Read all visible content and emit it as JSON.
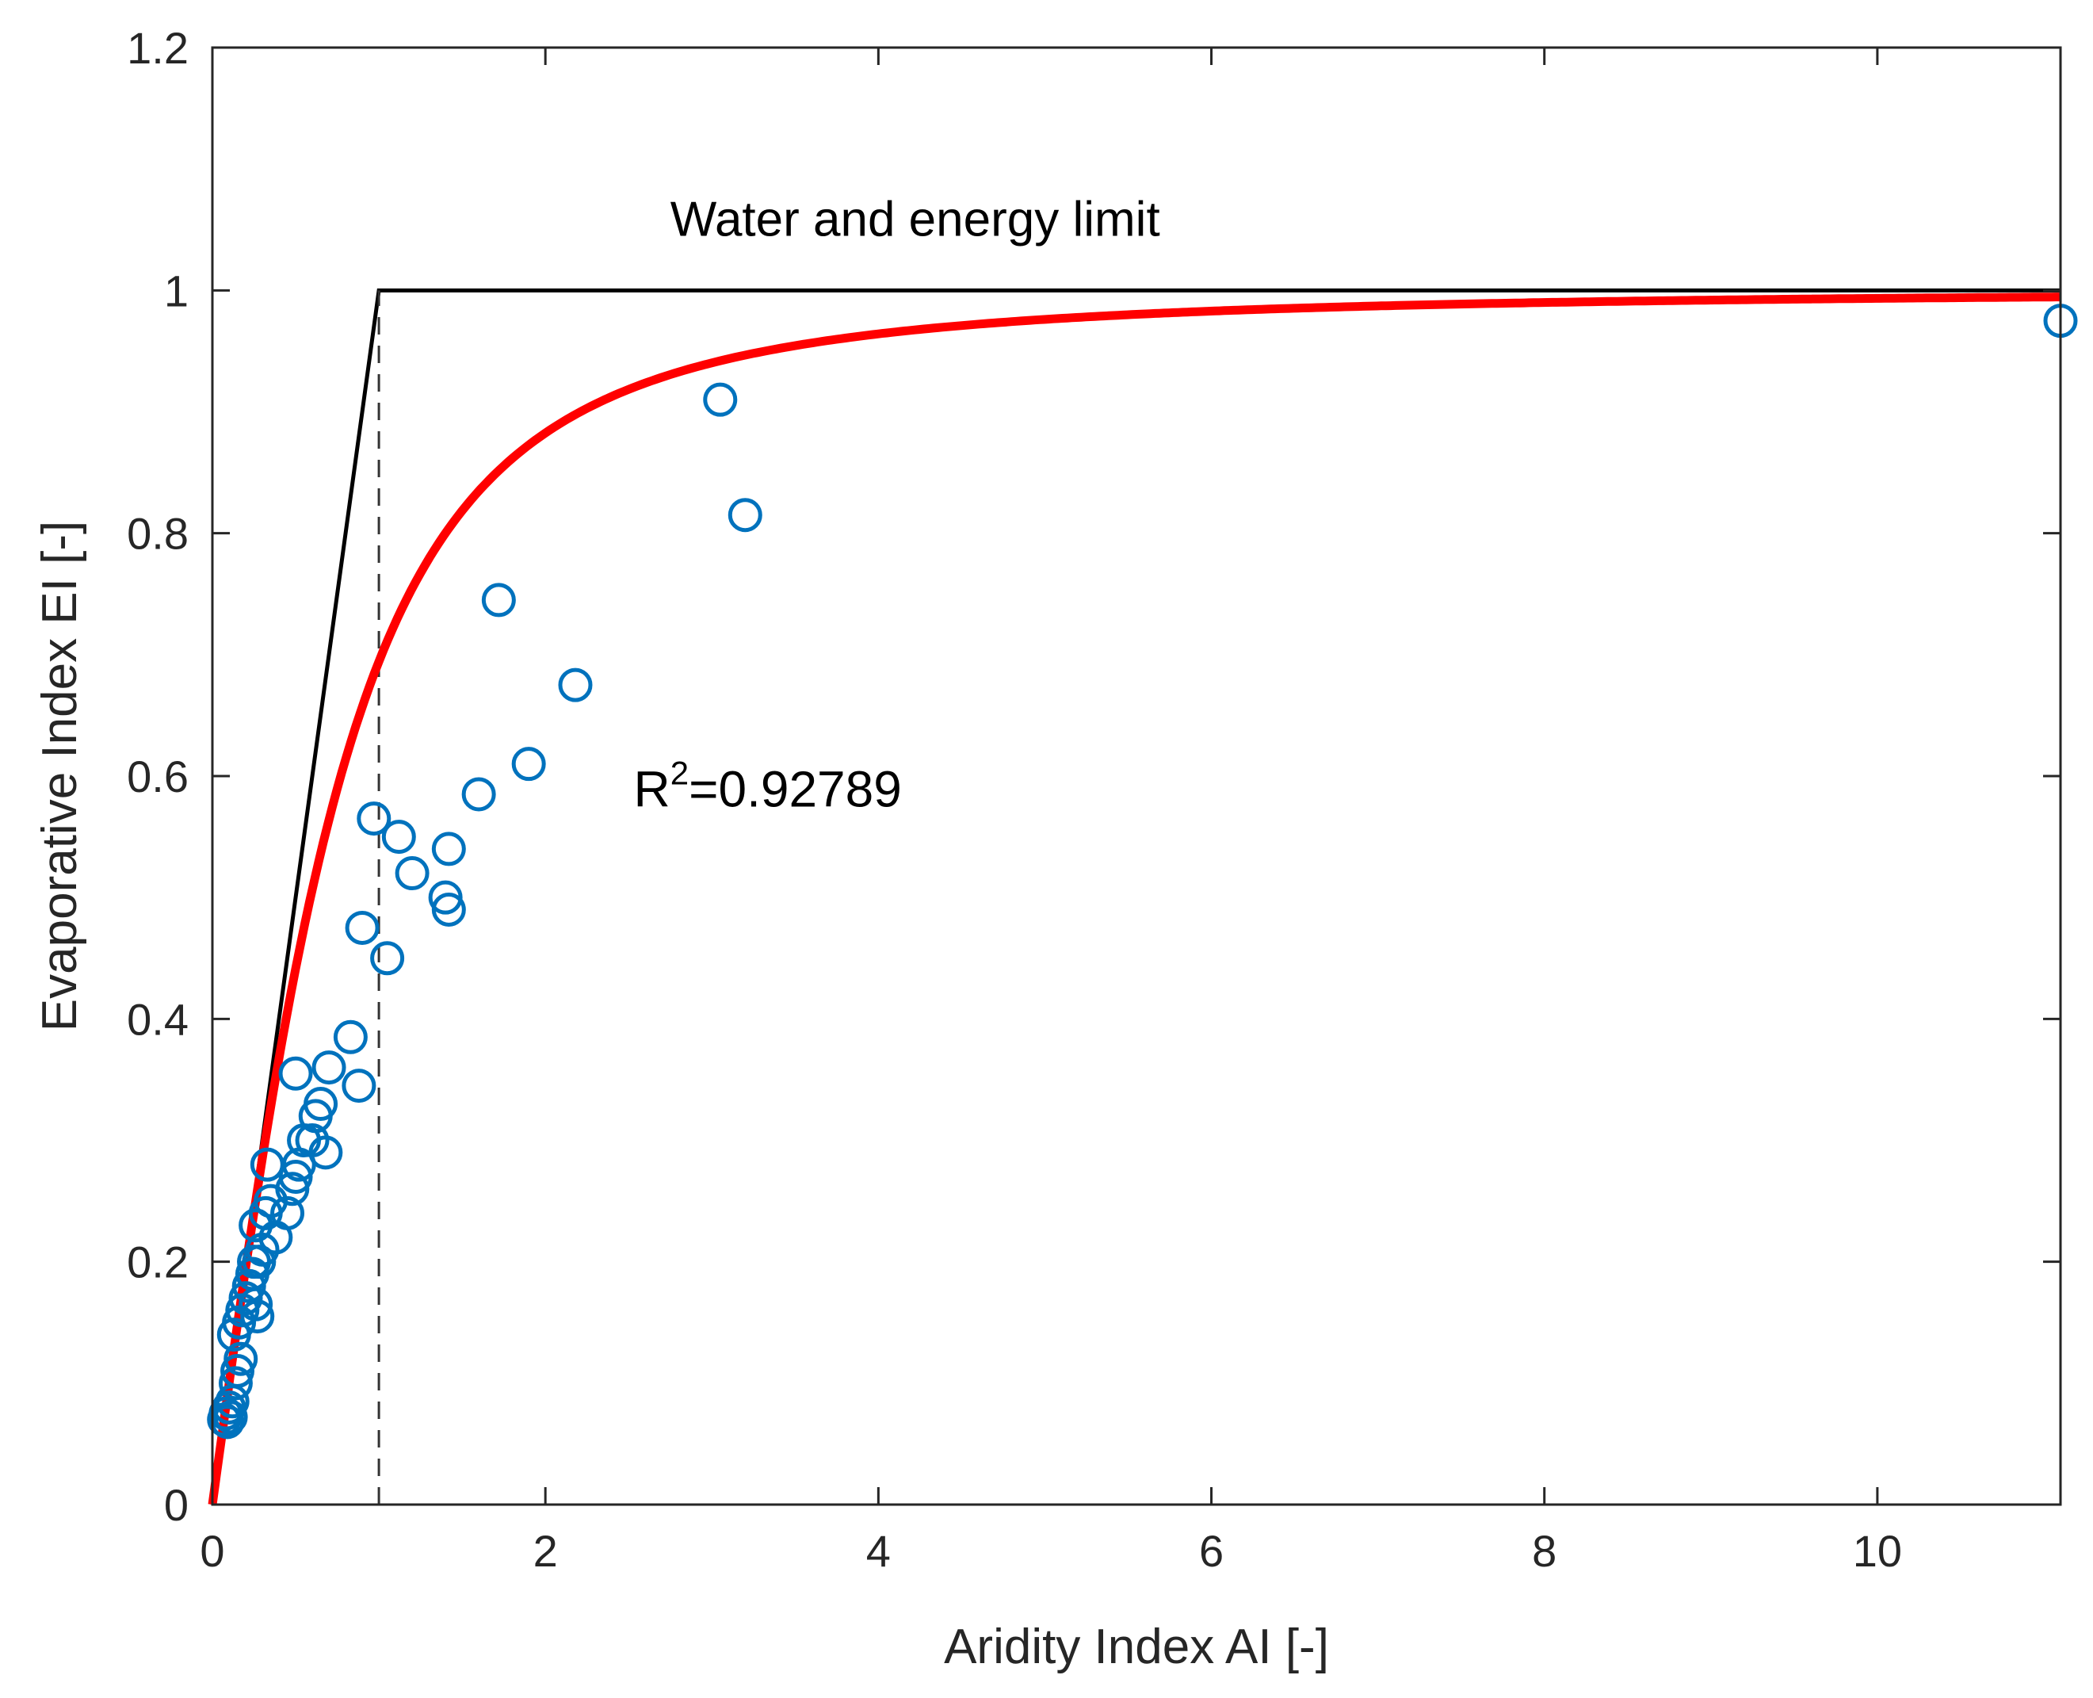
{
  "chart_data": {
    "type": "scatter",
    "title": "",
    "xlabel": "Aridity Index AI [-]",
    "ylabel": "Evaporative Index EI [-]",
    "xlim": [
      0,
      11.1
    ],
    "ylim": [
      0,
      1.2
    ],
    "xticks": [
      0,
      2,
      4,
      6,
      8,
      10
    ],
    "xtick_labels": [
      "0",
      "2",
      "4",
      "6",
      "8",
      "10"
    ],
    "yticks": [
      0,
      0.2,
      0.4,
      0.6,
      0.8,
      1.0,
      1.2
    ],
    "ytick_labels": [
      "0",
      "0.2",
      "0.4",
      "0.6",
      "0.8",
      "1",
      "1.2"
    ],
    "grid": false,
    "colors": {
      "points": "#0072BD",
      "fit": "#FF0000",
      "limit": "#000000",
      "axes": "#262626"
    },
    "annotations": {
      "limit_label": "Water and energy limit",
      "r2_base": "R",
      "r2_sup": "2",
      "r2_value": "=0.92789"
    },
    "series": [
      {
        "name": "observations",
        "type": "scatter",
        "points": [
          [
            0.07,
            0.07
          ],
          [
            0.08,
            0.075
          ],
          [
            0.09,
            0.068
          ],
          [
            0.1,
            0.08
          ],
          [
            0.11,
            0.072
          ],
          [
            0.12,
            0.085
          ],
          [
            0.14,
            0.1
          ],
          [
            0.15,
            0.11
          ],
          [
            0.17,
            0.12
          ],
          [
            0.13,
            0.14
          ],
          [
            0.16,
            0.15
          ],
          [
            0.18,
            0.16
          ],
          [
            0.2,
            0.17
          ],
          [
            0.22,
            0.18
          ],
          [
            0.24,
            0.19
          ],
          [
            0.25,
            0.2
          ],
          [
            0.26,
            0.165
          ],
          [
            0.27,
            0.155
          ],
          [
            0.28,
            0.2
          ],
          [
            0.3,
            0.21
          ],
          [
            0.26,
            0.23
          ],
          [
            0.32,
            0.24
          ],
          [
            0.35,
            0.25
          ],
          [
            0.38,
            0.22
          ],
          [
            0.33,
            0.28
          ],
          [
            0.45,
            0.24
          ],
          [
            0.48,
            0.26
          ],
          [
            0.5,
            0.27
          ],
          [
            0.55,
            0.3
          ],
          [
            0.52,
            0.28
          ],
          [
            0.6,
            0.3
          ],
          [
            0.62,
            0.32
          ],
          [
            0.65,
            0.33
          ],
          [
            0.68,
            0.29
          ],
          [
            0.5,
            0.355
          ],
          [
            0.7,
            0.36
          ],
          [
            0.83,
            0.385
          ],
          [
            0.88,
            0.345
          ],
          [
            0.9,
            0.475
          ],
          [
            0.97,
            0.565
          ],
          [
            1.05,
            0.45
          ],
          [
            1.12,
            0.55
          ],
          [
            1.2,
            0.52
          ],
          [
            1.4,
            0.5
          ],
          [
            1.42,
            0.49
          ],
          [
            1.42,
            0.54
          ],
          [
            1.6,
            0.585
          ],
          [
            1.72,
            0.745
          ],
          [
            1.9,
            0.61
          ],
          [
            2.18,
            0.675
          ],
          [
            3.05,
            0.91
          ],
          [
            3.2,
            0.815
          ],
          [
            11.1,
            0.975
          ]
        ]
      },
      {
        "name": "fit",
        "type": "line",
        "equation": "EI = AI / (1 + AI^n)^(1/n), n = 1.9",
        "n": 1.9
      },
      {
        "name": "water-energy-limit",
        "type": "line",
        "points": [
          [
            0,
            0
          ],
          [
            1,
            1
          ],
          [
            11.1,
            1
          ]
        ]
      },
      {
        "name": "ai-equals-one",
        "type": "line",
        "style": "dashed",
        "points": [
          [
            1,
            0
          ],
          [
            1,
            1
          ]
        ]
      }
    ]
  }
}
